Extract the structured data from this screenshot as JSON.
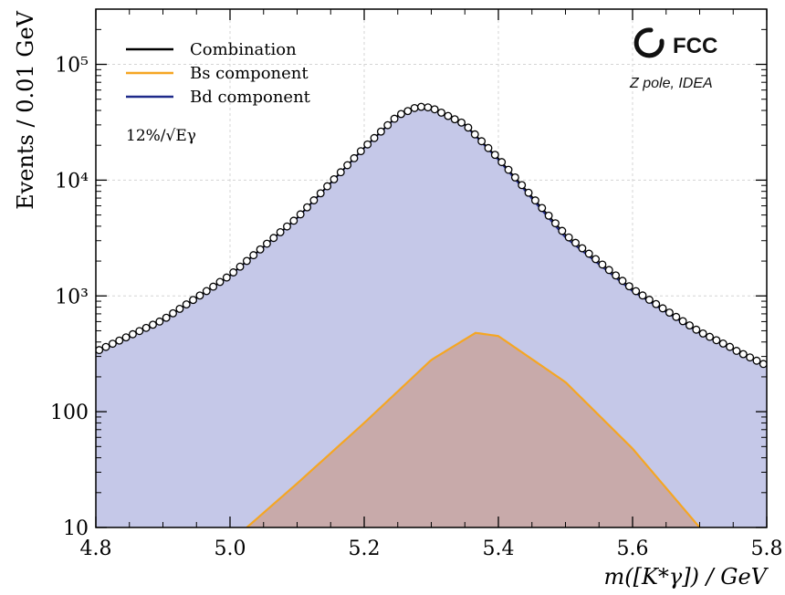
{
  "chart_data": {
    "type": "line",
    "log_y": true,
    "xlabel": "m([K*γ]) / GeV",
    "ylabel": "Events / 0.01 GeV",
    "xlim": [
      4.8,
      5.8
    ],
    "ylim": [
      10,
      300000
    ],
    "x_ticks": [
      {
        "value": 4.8,
        "label": "4.8"
      },
      {
        "value": 5.0,
        "label": "5.0"
      },
      {
        "value": 5.2,
        "label": "5.2"
      },
      {
        "value": 5.4,
        "label": "5.4"
      },
      {
        "value": 5.6,
        "label": "5.6"
      },
      {
        "value": 5.8,
        "label": "5.8"
      }
    ],
    "y_ticks": [
      {
        "value": 10,
        "label": "10"
      },
      {
        "value": 100,
        "label": "100"
      },
      {
        "value": 1000,
        "label": "10³"
      },
      {
        "value": 10000,
        "label": "10⁴"
      },
      {
        "value": 100000,
        "label": "10⁵"
      }
    ],
    "grid": true,
    "legend_position": "top-left",
    "legend": [
      {
        "label": "Combination",
        "color": "#000000"
      },
      {
        "label": "Bs component",
        "color": "#f5a623"
      },
      {
        "label": "Bd component",
        "color": "#1f2a8a"
      }
    ],
    "annotation": "12%/√Eγ",
    "experiment_label": "FCC",
    "experiment_sublabel": "Z pole, IDEA",
    "series": [
      {
        "name": "Bd component",
        "shape": "asymmetric peak",
        "peak_x": 5.28,
        "peak_y": 43000,
        "x": [
          4.8,
          4.9,
          5.0,
          5.1,
          5.2,
          5.25,
          5.28,
          5.3,
          5.35,
          5.4,
          5.5,
          5.6,
          5.7,
          5.8
        ],
        "y": [
          330,
          620,
          1500,
          4700,
          19000,
          36000,
          43000,
          42000,
          30000,
          15000,
          3200,
          1100,
          480,
          250
        ],
        "fill": "#c5c8e8",
        "color": "#1f2a8a"
      },
      {
        "name": "Bs component",
        "shape": "asymmetric peak",
        "peak_x": 5.366,
        "peak_y": 480,
        "x": [
          5.025,
          5.1,
          5.2,
          5.3,
          5.366,
          5.4,
          5.5,
          5.6,
          5.7
        ],
        "y": [
          10,
          24,
          80,
          280,
          480,
          450,
          180,
          48,
          10
        ],
        "fill": "#c8aaaa",
        "color": "#f5a623"
      },
      {
        "name": "Combination",
        "marker": "open-circle",
        "x_start": 4.805,
        "x_step": 0.01,
        "n_points": 100
      }
    ]
  }
}
